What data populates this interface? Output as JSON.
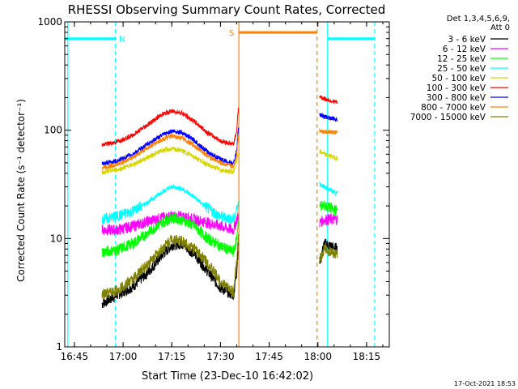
{
  "chart_data": {
    "type": "line",
    "title": "RHESSI Observing Summary Count Rates, Corrected",
    "xlabel": "Start Time (23-Dec-10 16:42:02)",
    "ylabel": "Corrected Count Rate (s⁻¹ detector⁻¹)",
    "yscale": "log",
    "ylim": [
      1,
      1000
    ],
    "xlim": [
      "16:42:02",
      "18:22:00"
    ],
    "x_ticks": [
      "16:45",
      "17:00",
      "17:15",
      "17:30",
      "17:45",
      "18:00",
      "18:15"
    ],
    "y_ticks": [
      "1",
      "10",
      "100",
      "1000"
    ],
    "legend_header": [
      "Det 1,3,4,5,6,9,",
      "Att 0"
    ],
    "footer_date": "17-Oct-2021 18:53",
    "series": [
      {
        "name": "3 - 6 keV",
        "color": "#000000",
        "x": [
          "16:53:30",
          "16:58:00",
          "17:03:00",
          "17:08:00",
          "17:12:00",
          "17:15:00",
          "17:18:00",
          "17:22:00",
          "17:26:00",
          "17:30:00",
          "17:34:00",
          "17:35:00",
          "17:35:30",
          "18:00:30",
          "18:02:00",
          "18:06:00"
        ],
        "y": [
          2.5,
          3,
          3.6,
          5,
          7,
          8.7,
          9,
          7.2,
          5,
          3.5,
          3,
          5,
          9,
          6,
          9,
          8
        ]
      },
      {
        "name": "6 - 12 keV",
        "color": "#ff00ff",
        "x": [
          "16:53:30",
          "16:58:00",
          "17:03:00",
          "17:08:00",
          "17:12:00",
          "17:15:00",
          "17:18:00",
          "17:22:00",
          "17:26:00",
          "17:30:00",
          "17:34:00",
          "17:35:00",
          "17:35:30",
          "18:00:30",
          "18:02:00",
          "18:06:00"
        ],
        "y": [
          12,
          12,
          13,
          14.5,
          15.5,
          16,
          16,
          15,
          14,
          13,
          12,
          15,
          16,
          14,
          15,
          15
        ]
      },
      {
        "name": "12 - 25 keV",
        "color": "#00ff00",
        "x": [
          "16:53:30",
          "16:58:00",
          "17:03:00",
          "17:08:00",
          "17:12:00",
          "17:15:00",
          "17:18:00",
          "17:22:00",
          "17:26:00",
          "17:30:00",
          "17:34:00",
          "17:35:00",
          "17:35:30",
          "18:00:30",
          "18:02:00",
          "18:06:00"
        ],
        "y": [
          7.5,
          7.8,
          9,
          11.5,
          14,
          15.5,
          15,
          13,
          10,
          8.5,
          7.5,
          10,
          15,
          20,
          20,
          18
        ]
      },
      {
        "name": "25 - 50 keV",
        "color": "#00ffff",
        "x": [
          "16:53:30",
          "16:58:00",
          "17:03:00",
          "17:08:00",
          "17:12:00",
          "17:15:00",
          "17:18:00",
          "17:22:00",
          "17:26:00",
          "17:30:00",
          "17:34:00",
          "17:35:00",
          "17:35:30",
          "18:00:30",
          "18:02:00",
          "18:06:00"
        ],
        "y": [
          15,
          16,
          18,
          22,
          27,
          30,
          29,
          24,
          19,
          16,
          15,
          18,
          22,
          32,
          30,
          26
        ]
      },
      {
        "name": "50 - 100 keV",
        "color": "#d6d600",
        "x": [
          "16:53:30",
          "16:58:00",
          "17:03:00",
          "17:08:00",
          "17:12:00",
          "17:15:00",
          "17:18:00",
          "17:22:00",
          "17:26:00",
          "17:30:00",
          "17:34:00",
          "17:35:00",
          "17:35:30",
          "18:00:30",
          "18:02:00",
          "18:06:00"
        ],
        "y": [
          41,
          43,
          48,
          57,
          65,
          67,
          65,
          57,
          48,
          43,
          41,
          52,
          62,
          64,
          60,
          55
        ]
      },
      {
        "name": "100 - 300 keV",
        "color": "#ff0000",
        "x": [
          "16:53:30",
          "16:58:00",
          "17:03:00",
          "17:08:00",
          "17:12:00",
          "17:15:00",
          "17:18:00",
          "17:22:00",
          "17:26:00",
          "17:30:00",
          "17:34:00",
          "17:35:00",
          "17:35:30",
          "18:00:30",
          "18:02:00",
          "18:06:00"
        ],
        "y": [
          73,
          78,
          90,
          115,
          140,
          150,
          145,
          120,
          95,
          80,
          74,
          100,
          160,
          205,
          195,
          180
        ]
      },
      {
        "name": "300 - 800 keV",
        "color": "#0000ff",
        "x": [
          "16:53:30",
          "16:58:00",
          "17:03:00",
          "17:08:00",
          "17:12:00",
          "17:15:00",
          "17:18:00",
          "17:22:00",
          "17:26:00",
          "17:30:00",
          "17:34:00",
          "17:35:00",
          "17:35:30",
          "18:00:30",
          "18:02:00",
          "18:06:00"
        ],
        "y": [
          49,
          52,
          60,
          76,
          90,
          98,
          96,
          80,
          63,
          54,
          49,
          65,
          105,
          140,
          133,
          125
        ]
      },
      {
        "name": "800 - 7000 keV",
        "color": "#ff8000",
        "x": [
          "16:53:30",
          "16:58:00",
          "17:03:00",
          "17:08:00",
          "17:12:00",
          "17:15:00",
          "17:18:00",
          "17:22:00",
          "17:26:00",
          "17:30:00",
          "17:34:00",
          "17:35:00",
          "17:35:30",
          "18:00:30",
          "18:02:00",
          "18:06:00"
        ],
        "y": [
          45,
          48,
          56,
          70,
          82,
          88,
          85,
          72,
          58,
          50,
          46,
          60,
          92,
          100,
          97,
          95
        ]
      },
      {
        "name": "7000 - 15000 keV",
        "color": "#808000",
        "x": [
          "16:53:30",
          "16:58:00",
          "17:03:00",
          "17:08:00",
          "17:12:00",
          "17:15:00",
          "17:18:00",
          "17:22:00",
          "17:26:00",
          "17:30:00",
          "17:34:00",
          "17:35:00",
          "17:35:30",
          "18:00:30",
          "18:02:00",
          "18:06:00"
        ],
        "y": [
          3,
          3.3,
          4.2,
          6,
          8,
          10,
          9.5,
          8,
          6,
          4,
          3.2,
          6,
          10,
          6,
          8,
          7
        ]
      }
    ],
    "intervals": [
      {
        "label": "N",
        "color": "#00ffff",
        "start": "16:42:02",
        "end": "16:57:40",
        "level": 700,
        "style": "solid"
      },
      {
        "label": "",
        "color": "#00ffff",
        "start": "18:03:00",
        "end": "18:17:30",
        "level": 700,
        "style": "solid"
      },
      {
        "label": "S",
        "color": "#ff8000",
        "start": "17:35:40",
        "end": "17:59:45",
        "level": 800,
        "style": "solid"
      }
    ],
    "vertical_markers": [
      {
        "at": "16:43:00",
        "color": "#00ffff",
        "style": "solid"
      },
      {
        "at": "16:57:40",
        "color": "#00ffff",
        "style": "dashed"
      },
      {
        "at": "17:35:40",
        "color": "#ff8000",
        "style": "solid"
      },
      {
        "at": "17:59:45",
        "color": "#ff8000",
        "style": "dashed"
      },
      {
        "at": "18:03:00",
        "color": "#00ffff",
        "style": "solid"
      },
      {
        "at": "18:17:30",
        "color": "#00ffff",
        "style": "dashed"
      }
    ],
    "legend": "right"
  }
}
